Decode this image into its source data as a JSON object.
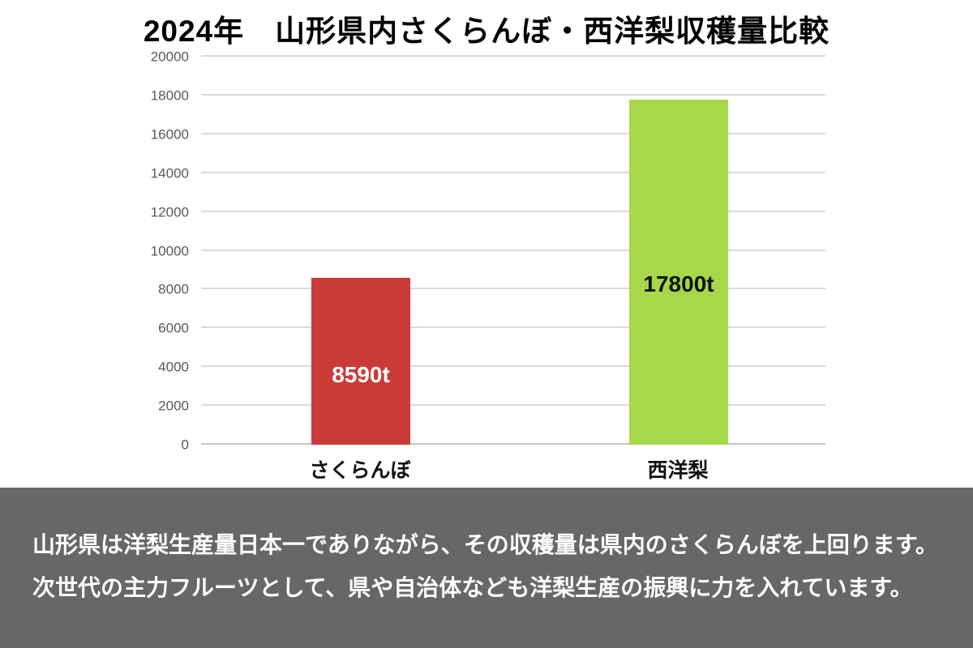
{
  "page": {
    "background": "#FFFFFF"
  },
  "chart": {
    "title": "2024年　山形県内さくらんぼ・西洋梨収穫量比較",
    "chart_data": {
      "type": "bar",
      "title": "2024年　山形県内さくらんぼ・西洋梨収穫量比較",
      "categories": [
        "さくらんぼ",
        "西洋梨"
      ],
      "values": [
        8590,
        17800
      ],
      "bar_labels": [
        "8590t",
        "17800t"
      ],
      "bar_colors": [
        "#CA3B38",
        "#A6D84A"
      ],
      "bar_label_colors": [
        "#FFFFFF",
        "#111111"
      ],
      "xlabel": "",
      "ylabel": "",
      "ylim": [
        0,
        20000
      ],
      "y_ticks": [
        0,
        2000,
        4000,
        6000,
        8000,
        10000,
        12000,
        14000,
        16000,
        18000,
        20000
      ],
      "grid": true,
      "legend": "none"
    },
    "colors": {
      "grid": "#DADADA",
      "baseline": "#C5C5C5",
      "axis_text": "#595959"
    }
  },
  "footer": {
    "background": "#676767",
    "text_color": "#FFFFFF",
    "lines": [
      "山形県は洋梨生産量日本一でありながら、その収穫量は県内のさくらんぼを上回ります。",
      "次世代の主力フルーツとして、県や自治体なども洋梨生産の振興に力を入れています。"
    ]
  }
}
